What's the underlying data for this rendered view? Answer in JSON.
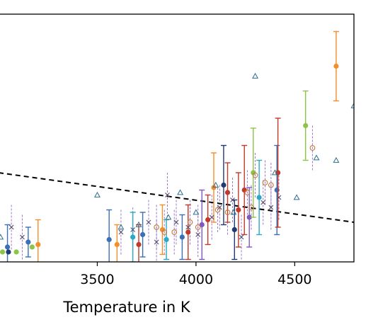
{
  "chart_data": {
    "type": "scatter",
    "xlabel": "Temperature in K",
    "ylabel": "",
    "xlim": [
      3000,
      4800
    ],
    "ylim": [
      0,
      100
    ],
    "x_ticks": [
      "3500",
      "4000",
      "4500"
    ],
    "x_tick_values": [
      3500,
      4000,
      4500
    ],
    "grid": false,
    "colors": {
      "green": "#8dc447",
      "navy": "#1f3b73",
      "blue": "#3b6fb6",
      "cyan": "#29a9c6",
      "orange": "#f28e2b",
      "red": "#c0392b",
      "purple": "#7e57c2",
      "grey": "#8c8c8c",
      "black": "#222222",
      "triangle": "#2b6f8f",
      "cross": "#5a5070",
      "dashed_errorbar": "#9b78c9",
      "open_circle": "#c8763a",
      "trend": "#000000"
    },
    "trend_line": {
      "x": [
        3000,
        4800
      ],
      "y": [
        36,
        16
      ]
    },
    "series": [
      {
        "marker": "filled-circle",
        "points": [
          {
            "x": 3020,
            "y": 4,
            "err": 0,
            "color": "green"
          },
          {
            "x": 3045,
            "y": 6,
            "err": 9,
            "color": "blue"
          },
          {
            "x": 3050,
            "y": 4,
            "err": 0,
            "color": "navy"
          },
          {
            "x": 3090,
            "y": 4,
            "err": 0,
            "color": "green"
          },
          {
            "x": 3150,
            "y": 8,
            "err": 6,
            "color": "blue"
          },
          {
            "x": 3170,
            "y": 6,
            "err": 0,
            "color": "green"
          },
          {
            "x": 3200,
            "y": 7,
            "err": 10,
            "color": "orange"
          },
          {
            "x": 3600,
            "y": 7,
            "err": 8,
            "color": "orange"
          },
          {
            "x": 3560,
            "y": 9,
            "err": 12,
            "color": "blue"
          },
          {
            "x": 3680,
            "y": 10,
            "err": 10,
            "color": "cyan"
          },
          {
            "x": 3710,
            "y": 7,
            "err": 8,
            "color": "red"
          },
          {
            "x": 3730,
            "y": 11,
            "err": 9,
            "color": "blue"
          },
          {
            "x": 3830,
            "y": 13,
            "err": 10,
            "color": "orange"
          },
          {
            "x": 3850,
            "y": 9,
            "err": 8,
            "color": "cyan"
          },
          {
            "x": 3930,
            "y": 10,
            "err": 9,
            "color": "blue"
          },
          {
            "x": 3960,
            "y": 12,
            "err": 11,
            "color": "red"
          },
          {
            "x": 4030,
            "y": 15,
            "err": 14,
            "color": "purple"
          },
          {
            "x": 4060,
            "y": 17,
            "err": 10,
            "color": "red"
          },
          {
            "x": 4090,
            "y": 30,
            "err": 14,
            "color": "orange"
          },
          {
            "x": 4140,
            "y": 31,
            "err": 16,
            "color": "navy"
          },
          {
            "x": 4160,
            "y": 28,
            "err": 12,
            "color": "red"
          },
          {
            "x": 4195,
            "y": 13,
            "err": 12,
            "color": "navy"
          },
          {
            "x": 4215,
            "y": 21,
            "err": 15,
            "color": "red"
          },
          {
            "x": 4245,
            "y": 29,
            "err": 18,
            "color": "red"
          },
          {
            "x": 4270,
            "y": 18,
            "err": 12,
            "color": "purple"
          },
          {
            "x": 4290,
            "y": 36,
            "err": 18,
            "color": "green"
          },
          {
            "x": 4320,
            "y": 26,
            "err": 15,
            "color": "cyan"
          },
          {
            "x": 4410,
            "y": 29,
            "err": 18,
            "color": "blue"
          },
          {
            "x": 4415,
            "y": 36,
            "err": 22,
            "color": "red"
          },
          {
            "x": 4555,
            "y": 55,
            "err": 14,
            "color": "green"
          },
          {
            "x": 4710,
            "y": 79,
            "err": 14,
            "color": "orange"
          }
        ]
      },
      {
        "marker": "open-triangle",
        "points": [
          {
            "x": 3010,
            "y": 10
          },
          {
            "x": 3500,
            "y": 27
          },
          {
            "x": 3620,
            "y": 14
          },
          {
            "x": 3710,
            "y": 15
          },
          {
            "x": 3860,
            "y": 18
          },
          {
            "x": 3920,
            "y": 28
          },
          {
            "x": 4000,
            "y": 20
          },
          {
            "x": 4100,
            "y": 31
          },
          {
            "x": 4190,
            "y": 20
          },
          {
            "x": 4300,
            "y": 75
          },
          {
            "x": 4400,
            "y": 36
          },
          {
            "x": 4510,
            "y": 26
          },
          {
            "x": 4610,
            "y": 42
          },
          {
            "x": 4710,
            "y": 41
          },
          {
            "x": 4800,
            "y": 63
          }
        ]
      },
      {
        "marker": "cross",
        "points": [
          {
            "x": 3065,
            "y": 14
          },
          {
            "x": 3120,
            "y": 10
          },
          {
            "x": 3620,
            "y": 12
          },
          {
            "x": 3680,
            "y": 13
          },
          {
            "x": 3760,
            "y": 16
          },
          {
            "x": 3800,
            "y": 8
          },
          {
            "x": 3855,
            "y": 27
          },
          {
            "x": 3900,
            "y": 16
          },
          {
            "x": 3960,
            "y": 14
          },
          {
            "x": 4010,
            "y": 11
          },
          {
            "x": 4080,
            "y": 18
          },
          {
            "x": 4120,
            "y": 22
          },
          {
            "x": 4185,
            "y": 25
          },
          {
            "x": 4230,
            "y": 10
          },
          {
            "x": 4340,
            "y": 24
          },
          {
            "x": 4380,
            "y": 22
          },
          {
            "x": 4420,
            "y": 26
          }
        ]
      },
      {
        "marker": "open-circle",
        "points": [
          {
            "x": 3800,
            "y": 14
          },
          {
            "x": 3840,
            "y": 12
          },
          {
            "x": 3890,
            "y": 12
          },
          {
            "x": 3970,
            "y": 16
          },
          {
            "x": 4010,
            "y": 14
          },
          {
            "x": 4110,
            "y": 21
          },
          {
            "x": 4160,
            "y": 20
          },
          {
            "x": 4260,
            "y": 28
          },
          {
            "x": 4280,
            "y": 22
          },
          {
            "x": 4300,
            "y": 35
          },
          {
            "x": 4350,
            "y": 32
          },
          {
            "x": 4380,
            "y": 31
          },
          {
            "x": 4590,
            "y": 46
          }
        ]
      }
    ]
  }
}
